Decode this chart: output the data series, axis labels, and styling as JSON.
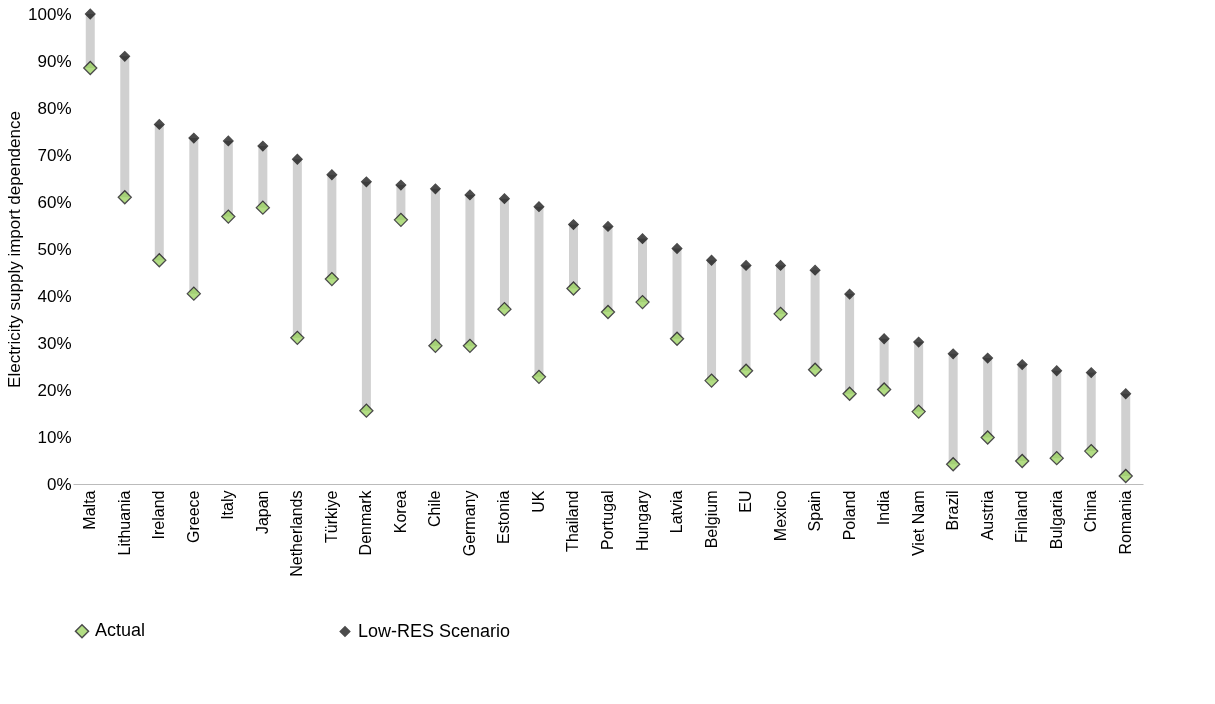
{
  "chart_data": {
    "type": "scatter",
    "ylabel": "Electricity supply import dependence",
    "categories": [
      "Malta",
      "Lithuania",
      "Ireland",
      "Greece",
      "Italy",
      "Japan",
      "Netherlands",
      "Türkiye",
      "Denmark",
      "Korea",
      "Chile",
      "Germany",
      "Estonia",
      "UK",
      "Thailand",
      "Portugal",
      "Hungary",
      "Latvia",
      "Belgium",
      "EU",
      "Mexico",
      "Spain",
      "Poland",
      "India",
      "Viet Nam",
      "Brazil",
      "Austria",
      "Finland",
      "Bulgaria",
      "China",
      "Romania"
    ],
    "series": [
      {
        "name": "Actual",
        "color": "#92d050",
        "values": [
          88.5,
          61,
          47.6,
          40.5,
          56.9,
          58.8,
          31.1,
          43.6,
          15.6,
          56.2,
          29.4,
          29.4,
          37.2,
          22.8,
          41.6,
          36.6,
          38.7,
          30.9,
          22,
          24.1,
          36.2,
          24.3,
          19.2,
          20.1,
          15.4,
          4.2,
          9.9,
          4.9,
          5.5,
          7,
          1.7
        ]
      },
      {
        "name": "Low-RES Scenario",
        "color": "#000000",
        "values": [
          100,
          91,
          76.5,
          73.6,
          73,
          71.9,
          69.1,
          65.8,
          64.3,
          63.6,
          62.8,
          61.5,
          60.7,
          59,
          55.2,
          54.8,
          52.2,
          50.1,
          47.6,
          46.5,
          46.5,
          45.5,
          40.4,
          30.9,
          30.2,
          27.7,
          26.8,
          25.4,
          24.1,
          23.7,
          19.2
        ]
      }
    ],
    "ylim": [
      0,
      100
    ],
    "yticks": [
      {
        "value": 0,
        "label": "0%"
      },
      {
        "value": 10,
        "label": "10%"
      },
      {
        "value": 20,
        "label": "20%"
      },
      {
        "value": 30,
        "label": "30%"
      },
      {
        "value": 40,
        "label": "40%"
      },
      {
        "value": 50,
        "label": "50%"
      },
      {
        "value": 60,
        "label": "60%"
      },
      {
        "value": 70,
        "label": "70%"
      },
      {
        "value": 80,
        "label": "80%"
      },
      {
        "value": 90,
        "label": "90%"
      },
      {
        "value": 100,
        "label": "100%"
      }
    ],
    "grid": false,
    "legend": "bottom",
    "marker": "diamond"
  }
}
